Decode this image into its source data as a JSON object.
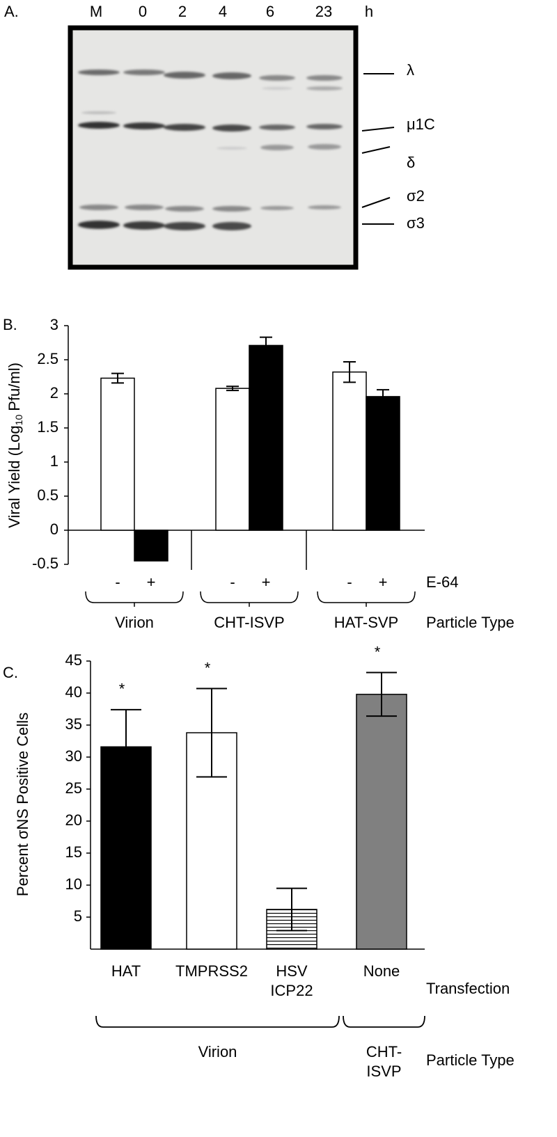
{
  "gel": {
    "panel_label": "A.",
    "lanes": [
      "M",
      "0",
      "2",
      "4",
      "6",
      "23"
    ],
    "lane_unit": "h",
    "band_labels": [
      "λ",
      "μ1C",
      "δ",
      "σ2",
      "σ3"
    ]
  },
  "chart_data": [
    {
      "type": "bar",
      "panel_label": "B.",
      "ylabel": [
        "Viral Yield (Log",
        "10",
        "Pfu/ml)"
      ],
      "categories": [
        "Virion",
        "CHT-ISVP",
        "HAT-SVP"
      ],
      "series": [
        {
          "name": "-",
          "color": "#ffffff",
          "values": [
            2.23,
            2.08,
            2.32
          ],
          "errors": [
            0.07,
            0.03,
            0.15
          ]
        },
        {
          "name": "+",
          "color": "#000000",
          "values": [
            -0.45,
            2.71,
            1.96
          ],
          "errors": [
            null,
            0.12,
            0.1
          ]
        }
      ],
      "legend_label": "E-64",
      "group_axis_label": "Particle Type",
      "ylim": [
        -0.5,
        3
      ],
      "yticks": [
        -0.5,
        0,
        0.5,
        1,
        1.5,
        2,
        2.5,
        3
      ]
    },
    {
      "type": "bar",
      "panel_label": "C.",
      "ylabel": "Percent σNS Positive Cells",
      "categories": [
        "HAT",
        "TMPRSS2",
        "HSV ICP22",
        "None"
      ],
      "values": [
        31.6,
        33.8,
        6.2,
        39.8
      ],
      "errors": [
        5.8,
        6.9,
        3.3,
        3.4
      ],
      "colors": [
        "#000000",
        "#ffffff",
        "#ffffff",
        "#808080"
      ],
      "hatch": [
        false,
        false,
        true,
        false
      ],
      "significance": [
        "*",
        "*",
        null,
        "*"
      ],
      "x_label": "Transfection",
      "group_labels": [
        "Virion",
        "CHT-ISVP"
      ],
      "group_axis_label": "Particle Type",
      "ylim": [
        0,
        45
      ],
      "yticks": [
        5,
        10,
        15,
        20,
        25,
        30,
        35,
        40,
        45
      ]
    }
  ]
}
